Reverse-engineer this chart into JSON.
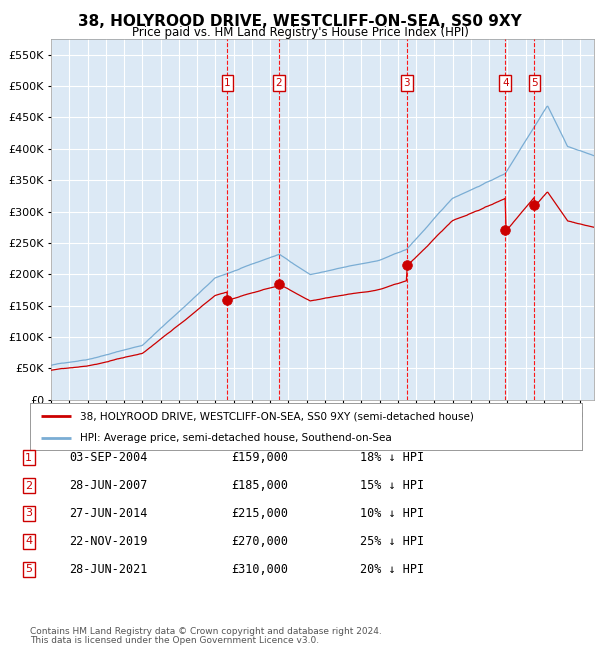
{
  "title": "38, HOLYROOD DRIVE, WESTCLIFF-ON-SEA, SS0 9XY",
  "subtitle": "Price paid vs. HM Land Registry's House Price Index (HPI)",
  "legend_red": "38, HOLYROOD DRIVE, WESTCLIFF-ON-SEA, SS0 9XY (semi-detached house)",
  "legend_blue": "HPI: Average price, semi-detached house, Southend-on-Sea",
  "footnote1": "Contains HM Land Registry data © Crown copyright and database right 2024.",
  "footnote2": "This data is licensed under the Open Government Licence v3.0.",
  "bg_color": "#dce9f5",
  "red_color": "#cc0000",
  "blue_color": "#7aadd4",
  "ylim": [
    0,
    575000
  ],
  "yticks": [
    0,
    50000,
    100000,
    150000,
    200000,
    250000,
    300000,
    350000,
    400000,
    450000,
    500000,
    550000
  ],
  "xlim_start": 1995.0,
  "xlim_end": 2024.75,
  "transactions": [
    {
      "num": 1,
      "price": 159000,
      "x_year": 2004.67
    },
    {
      "num": 2,
      "price": 185000,
      "x_year": 2007.49
    },
    {
      "num": 3,
      "price": 215000,
      "x_year": 2014.49
    },
    {
      "num": 4,
      "price": 270000,
      "x_year": 2019.89
    },
    {
      "num": 5,
      "price": 310000,
      "x_year": 2021.49
    }
  ],
  "table_rows": [
    {
      "num": 1,
      "date": "03-SEP-2004",
      "price": "£159,000",
      "pct": "18% ↓ HPI"
    },
    {
      "num": 2,
      "date": "28-JUN-2007",
      "price": "£185,000",
      "pct": "15% ↓ HPI"
    },
    {
      "num": 3,
      "date": "27-JUN-2014",
      "price": "£215,000",
      "pct": "10% ↓ HPI"
    },
    {
      "num": 4,
      "date": "22-NOV-2019",
      "price": "£270,000",
      "pct": "25% ↓ HPI"
    },
    {
      "num": 5,
      "date": "28-JUN-2021",
      "price": "£310,000",
      "pct": "20% ↓ HPI"
    }
  ]
}
